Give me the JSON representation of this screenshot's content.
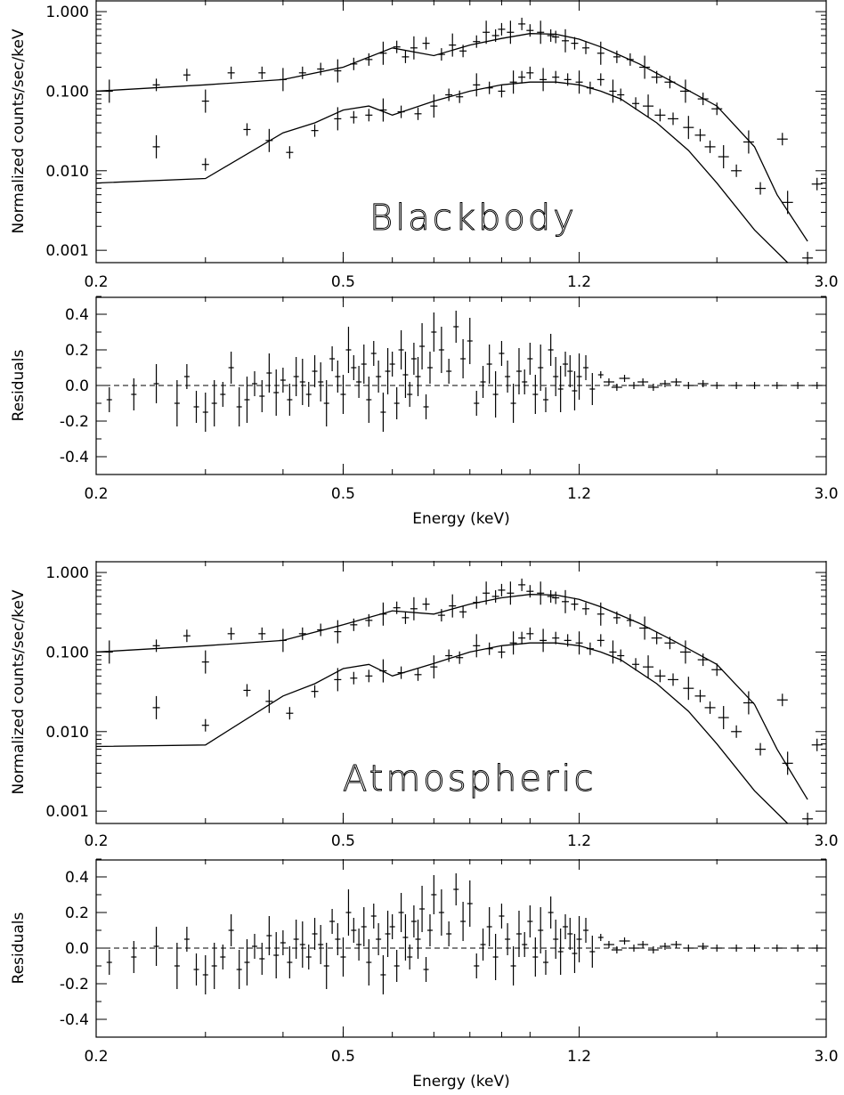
{
  "chart_data": [
    {
      "type": "scatter",
      "title": "",
      "annotation": "Blackbody",
      "xlabel": "",
      "ylabel": "Normalized counts/sec/keV",
      "x_scale": "log",
      "y_scale": "log",
      "xlim": [
        0.2,
        3.0
      ],
      "ylim": [
        0.0007,
        1.4
      ],
      "x_tick_labels": [
        "0.2",
        "0.5",
        "1.2",
        "3.0"
      ],
      "y_tick_labels": [
        "0.001",
        "0.010",
        "0.100",
        "1.000"
      ],
      "series": [
        {
          "x": [
            0.21,
            0.25,
            0.28,
            0.3,
            0.33,
            0.37,
            0.4,
            0.43,
            0.46,
            0.49,
            0.52,
            0.55,
            0.58,
            0.61,
            0.63,
            0.65,
            0.68,
            0.72,
            0.75,
            0.78,
            0.82,
            0.85,
            0.88,
            0.9,
            0.93,
            0.97,
            1.0,
            1.04,
            1.08,
            1.1,
            1.14,
            1.18,
            1.23,
            1.3,
            1.38,
            1.45,
            1.53,
            1.6,
            1.68,
            1.78,
            1.9,
            2.0,
            2.25,
            2.55,
            2.9
          ],
          "y": [
            0.1,
            0.12,
            0.16,
            0.075,
            0.17,
            0.17,
            0.14,
            0.17,
            0.19,
            0.18,
            0.22,
            0.25,
            0.3,
            0.36,
            0.27,
            0.35,
            0.4,
            0.29,
            0.38,
            0.32,
            0.42,
            0.55,
            0.5,
            0.6,
            0.55,
            0.7,
            0.58,
            0.55,
            0.5,
            0.48,
            0.43,
            0.4,
            0.35,
            0.3,
            0.27,
            0.25,
            0.2,
            0.15,
            0.13,
            0.1,
            0.08,
            0.06,
            0.023,
            0.025,
            0.0068
          ]
        },
        {
          "x": [
            0.25,
            0.3,
            0.35,
            0.38,
            0.41,
            0.45,
            0.49,
            0.52,
            0.55,
            0.58,
            0.62,
            0.66,
            0.7,
            0.74,
            0.77,
            0.82,
            0.86,
            0.9,
            0.94,
            0.97,
            1.0,
            1.05,
            1.1,
            1.15,
            1.2,
            1.25,
            1.3,
            1.36,
            1.4,
            1.48,
            1.55,
            1.62,
            1.7,
            1.8,
            1.88,
            1.95,
            2.05,
            2.15,
            2.35,
            2.6,
            2.8
          ],
          "y": [
            0.02,
            0.012,
            0.033,
            0.024,
            0.017,
            0.032,
            0.045,
            0.047,
            0.05,
            0.058,
            0.055,
            0.052,
            0.065,
            0.09,
            0.085,
            0.12,
            0.11,
            0.1,
            0.13,
            0.15,
            0.17,
            0.14,
            0.15,
            0.14,
            0.13,
            0.11,
            0.14,
            0.1,
            0.09,
            0.07,
            0.065,
            0.05,
            0.045,
            0.035,
            0.028,
            0.02,
            0.015,
            0.01,
            0.006,
            0.004,
            0.0008
          ]
        }
      ],
      "model_lines": [
        {
          "x": [
            0.2,
            0.3,
            0.4,
            0.5,
            0.6,
            0.7,
            0.8,
            0.9,
            1.0,
            1.1,
            1.2,
            1.3,
            1.4,
            1.5,
            1.7,
            2.0,
            2.3,
            2.5,
            2.8
          ],
          "y": [
            0.1,
            0.12,
            0.14,
            0.2,
            0.35,
            0.28,
            0.38,
            0.46,
            0.53,
            0.52,
            0.45,
            0.36,
            0.28,
            0.22,
            0.13,
            0.065,
            0.02,
            0.005,
            0.0013
          ]
        },
        {
          "x": [
            0.2,
            0.3,
            0.4,
            0.45,
            0.5,
            0.55,
            0.6,
            0.7,
            0.8,
            0.9,
            1.0,
            1.1,
            1.2,
            1.3,
            1.4,
            1.6,
            1.8,
            2.0,
            2.3,
            2.6
          ],
          "y": [
            0.007,
            0.008,
            0.03,
            0.04,
            0.058,
            0.065,
            0.05,
            0.075,
            0.1,
            0.12,
            0.13,
            0.13,
            0.12,
            0.1,
            0.08,
            0.04,
            0.018,
            0.007,
            0.0018,
            0.0007
          ]
        }
      ]
    },
    {
      "type": "scatter",
      "title": "",
      "xlabel": "Energy (keV)",
      "ylabel": "Residuals",
      "x_scale": "log",
      "xlim": [
        0.2,
        3.0
      ],
      "ylim": [
        -0.5,
        0.5
      ],
      "x_tick_labels": [
        "0.2",
        "0.5",
        "1.2",
        "3.0"
      ],
      "y_tick_labels": [
        "-0.4",
        "-0.2",
        "0.0",
        "0.2",
        "0.4"
      ],
      "x": [
        0.21,
        0.23,
        0.25,
        0.27,
        0.28,
        0.29,
        0.3,
        0.31,
        0.32,
        0.33,
        0.34,
        0.35,
        0.36,
        0.37,
        0.38,
        0.39,
        0.4,
        0.41,
        0.42,
        0.43,
        0.44,
        0.45,
        0.46,
        0.47,
        0.48,
        0.49,
        0.5,
        0.51,
        0.52,
        0.53,
        0.54,
        0.55,
        0.56,
        0.57,
        0.58,
        0.59,
        0.6,
        0.61,
        0.62,
        0.63,
        0.64,
        0.65,
        0.66,
        0.67,
        0.68,
        0.69,
        0.7,
        0.72,
        0.74,
        0.76,
        0.78,
        0.8,
        0.82,
        0.84,
        0.86,
        0.88,
        0.9,
        0.92,
        0.94,
        0.96,
        0.98,
        1.0,
        1.02,
        1.04,
        1.06,
        1.08,
        1.1,
        1.12,
        1.14,
        1.16,
        1.18,
        1.2,
        1.23,
        1.26,
        1.3,
        1.34,
        1.38,
        1.42,
        1.47,
        1.52,
        1.58,
        1.65,
        1.72,
        1.8,
        1.9,
        2.0,
        2.15,
        2.3,
        2.5,
        2.7,
        2.9
      ],
      "y": [
        -0.08,
        -0.05,
        0.01,
        -0.1,
        0.05,
        -0.12,
        -0.15,
        -0.1,
        -0.05,
        0.1,
        -0.12,
        -0.08,
        0.01,
        -0.06,
        0.07,
        -0.04,
        0.03,
        -0.08,
        0.05,
        0.02,
        -0.05,
        0.08,
        0.02,
        -0.1,
        0.15,
        0.05,
        -0.05,
        0.2,
        0.1,
        0.02,
        0.12,
        -0.08,
        0.18,
        0.05,
        -0.15,
        0.08,
        0.12,
        -0.1,
        0.2,
        0.06,
        -0.05,
        0.15,
        0.05,
        0.22,
        -0.12,
        0.1,
        0.3,
        0.2,
        0.08,
        0.33,
        0.15,
        0.25,
        -0.1,
        0.02,
        0.12,
        -0.05,
        0.18,
        0.05,
        -0.1,
        0.08,
        0.02,
        0.15,
        -0.05,
        0.1,
        -0.08,
        0.2,
        0.05,
        -0.02,
        0.12,
        0.08,
        -0.03,
        0.05,
        0.1,
        -0.02,
        0.06,
        0.02,
        -0.01,
        0.04,
        0.0,
        0.02,
        -0.01,
        0.01,
        0.02,
        0.0,
        0.01,
        0.0,
        0.0,
        0.0,
        0.0,
        0.0,
        0.0
      ],
      "zero_line": 0.0
    },
    {
      "type": "scatter",
      "title": "",
      "annotation": "Atmospheric",
      "xlabel": "",
      "ylabel": "Normalized counts/sec/keV",
      "x_scale": "log",
      "y_scale": "log",
      "xlim": [
        0.2,
        3.0
      ],
      "ylim": [
        0.0007,
        1.4
      ],
      "x_tick_labels": [
        "0.2",
        "0.5",
        "1.2",
        "3.0"
      ],
      "y_tick_labels": [
        "0.001",
        "0.010",
        "0.100",
        "1.000"
      ],
      "series": [
        {
          "x": [
            0.21,
            0.25,
            0.28,
            0.3,
            0.33,
            0.37,
            0.4,
            0.43,
            0.46,
            0.49,
            0.52,
            0.55,
            0.58,
            0.61,
            0.63,
            0.65,
            0.68,
            0.72,
            0.75,
            0.78,
            0.82,
            0.85,
            0.88,
            0.9,
            0.93,
            0.97,
            1.0,
            1.04,
            1.08,
            1.1,
            1.14,
            1.18,
            1.23,
            1.3,
            1.38,
            1.45,
            1.53,
            1.6,
            1.68,
            1.78,
            1.9,
            2.0,
            2.25,
            2.55,
            2.9
          ],
          "y": [
            0.1,
            0.12,
            0.16,
            0.075,
            0.17,
            0.17,
            0.14,
            0.17,
            0.19,
            0.18,
            0.22,
            0.25,
            0.3,
            0.36,
            0.27,
            0.35,
            0.4,
            0.29,
            0.38,
            0.32,
            0.42,
            0.55,
            0.5,
            0.6,
            0.55,
            0.7,
            0.58,
            0.55,
            0.5,
            0.48,
            0.43,
            0.4,
            0.35,
            0.3,
            0.27,
            0.25,
            0.2,
            0.15,
            0.13,
            0.1,
            0.08,
            0.06,
            0.023,
            0.025,
            0.0068
          ]
        },
        {
          "x": [
            0.25,
            0.3,
            0.35,
            0.38,
            0.41,
            0.45,
            0.49,
            0.52,
            0.55,
            0.58,
            0.62,
            0.66,
            0.7,
            0.74,
            0.77,
            0.82,
            0.86,
            0.9,
            0.94,
            0.97,
            1.0,
            1.05,
            1.1,
            1.15,
            1.2,
            1.25,
            1.3,
            1.36,
            1.4,
            1.48,
            1.55,
            1.62,
            1.7,
            1.8,
            1.88,
            1.95,
            2.05,
            2.15,
            2.35,
            2.6,
            2.8
          ],
          "y": [
            0.02,
            0.012,
            0.033,
            0.024,
            0.017,
            0.032,
            0.045,
            0.047,
            0.05,
            0.058,
            0.055,
            0.052,
            0.065,
            0.09,
            0.085,
            0.12,
            0.11,
            0.1,
            0.13,
            0.15,
            0.17,
            0.14,
            0.15,
            0.14,
            0.13,
            0.11,
            0.14,
            0.1,
            0.09,
            0.07,
            0.065,
            0.05,
            0.045,
            0.035,
            0.028,
            0.02,
            0.015,
            0.01,
            0.006,
            0.004,
            0.0008
          ]
        }
      ],
      "model_lines": [
        {
          "x": [
            0.2,
            0.3,
            0.4,
            0.5,
            0.6,
            0.7,
            0.8,
            0.9,
            1.0,
            1.1,
            1.2,
            1.3,
            1.4,
            1.5,
            1.7,
            2.0,
            2.3,
            2.5,
            2.8
          ],
          "y": [
            0.1,
            0.12,
            0.14,
            0.22,
            0.33,
            0.3,
            0.4,
            0.48,
            0.53,
            0.52,
            0.46,
            0.37,
            0.29,
            0.23,
            0.14,
            0.07,
            0.022,
            0.006,
            0.0014
          ]
        },
        {
          "x": [
            0.2,
            0.3,
            0.4,
            0.45,
            0.5,
            0.55,
            0.6,
            0.7,
            0.8,
            0.9,
            1.0,
            1.1,
            1.2,
            1.3,
            1.4,
            1.6,
            1.8,
            2.0,
            2.3,
            2.6
          ],
          "y": [
            0.0065,
            0.0068,
            0.028,
            0.04,
            0.062,
            0.07,
            0.05,
            0.072,
            0.1,
            0.12,
            0.13,
            0.13,
            0.12,
            0.1,
            0.08,
            0.04,
            0.018,
            0.007,
            0.0018,
            0.0007
          ]
        }
      ]
    },
    {
      "type": "scatter",
      "title": "",
      "xlabel": "Energy (keV)",
      "ylabel": "Residuals",
      "x_scale": "log",
      "xlim": [
        0.2,
        3.0
      ],
      "ylim": [
        -0.5,
        0.5
      ],
      "x_tick_labels": [
        "0.2",
        "0.5",
        "1.2",
        "3.0"
      ],
      "y_tick_labels": [
        "-0.4",
        "-0.2",
        "0.0",
        "0.2",
        "0.4"
      ],
      "x": [
        0.21,
        0.23,
        0.25,
        0.27,
        0.28,
        0.29,
        0.3,
        0.31,
        0.32,
        0.33,
        0.34,
        0.35,
        0.36,
        0.37,
        0.38,
        0.39,
        0.4,
        0.41,
        0.42,
        0.43,
        0.44,
        0.45,
        0.46,
        0.47,
        0.48,
        0.49,
        0.5,
        0.51,
        0.52,
        0.53,
        0.54,
        0.55,
        0.56,
        0.57,
        0.58,
        0.59,
        0.6,
        0.61,
        0.62,
        0.63,
        0.64,
        0.65,
        0.66,
        0.67,
        0.68,
        0.69,
        0.7,
        0.72,
        0.74,
        0.76,
        0.78,
        0.8,
        0.82,
        0.84,
        0.86,
        0.88,
        0.9,
        0.92,
        0.94,
        0.96,
        0.98,
        1.0,
        1.02,
        1.04,
        1.06,
        1.08,
        1.1,
        1.12,
        1.14,
        1.16,
        1.18,
        1.2,
        1.23,
        1.26,
        1.3,
        1.34,
        1.38,
        1.42,
        1.47,
        1.52,
        1.58,
        1.65,
        1.72,
        1.8,
        1.9,
        2.0,
        2.15,
        2.3,
        2.5,
        2.7,
        2.9
      ],
      "y": [
        -0.08,
        -0.05,
        0.01,
        -0.1,
        0.05,
        -0.12,
        -0.15,
        -0.1,
        -0.05,
        0.1,
        -0.12,
        -0.08,
        0.01,
        -0.06,
        0.07,
        -0.04,
        0.03,
        -0.08,
        0.05,
        0.02,
        -0.05,
        0.08,
        0.02,
        -0.1,
        0.15,
        0.05,
        -0.05,
        0.2,
        0.1,
        0.02,
        0.12,
        -0.08,
        0.18,
        0.05,
        -0.15,
        0.08,
        0.12,
        -0.1,
        0.2,
        0.06,
        -0.05,
        0.15,
        0.05,
        0.22,
        -0.12,
        0.1,
        0.3,
        0.2,
        0.08,
        0.33,
        0.15,
        0.25,
        -0.1,
        0.02,
        0.12,
        -0.05,
        0.18,
        0.05,
        -0.1,
        0.08,
        0.02,
        0.15,
        -0.05,
        0.1,
        -0.08,
        0.2,
        0.05,
        -0.02,
        0.12,
        0.08,
        -0.03,
        0.05,
        0.1,
        -0.02,
        0.06,
        0.02,
        -0.01,
        0.04,
        0.0,
        0.02,
        -0.01,
        0.01,
        0.02,
        0.0,
        0.01,
        0.0,
        0.0,
        0.0,
        0.0,
        0.0,
        0.0
      ],
      "zero_line": 0.0
    }
  ]
}
